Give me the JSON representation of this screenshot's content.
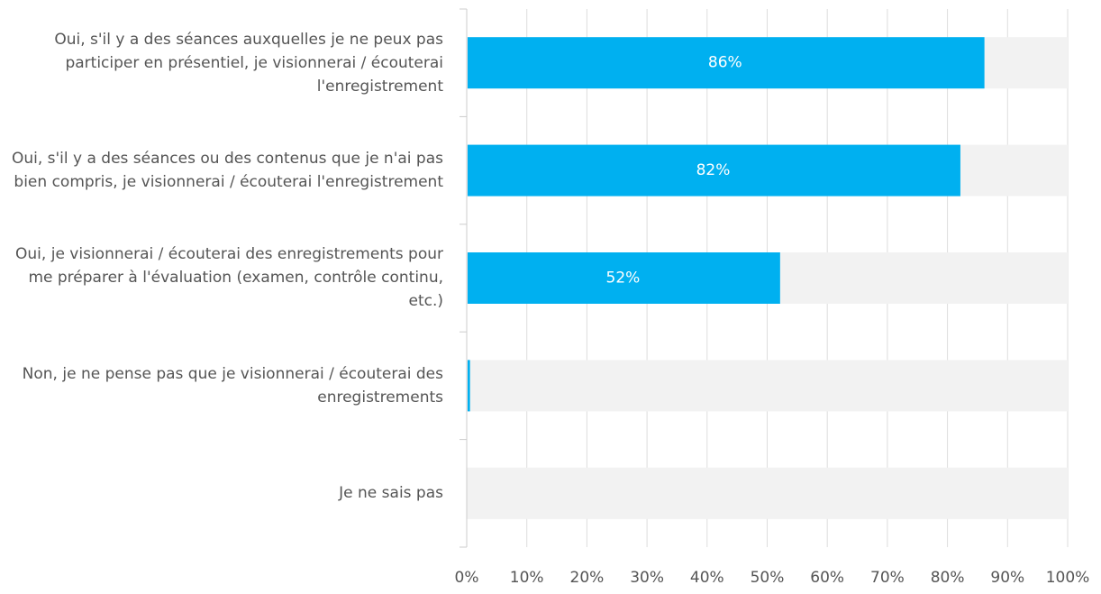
{
  "chart_data": {
    "type": "barh",
    "categories": [
      "Oui, s'il y a des séances auxquelles je ne peux pas participer en présentiel, je visionnerai / écouterai l'enregistrement",
      "Oui, s'il y a des séances ou des contenus que je n'ai pas bien compris, je visionnerai / écouterai l'enregistrement",
      "Oui, je visionnerai / écouterai des enregistrements pour me préparer à l'évaluation (examen, contrôle continu, etc.)",
      "Non, je ne pense pas que je visionnerai / écouterai des enregistrements",
      "Je ne sais pas"
    ],
    "values": [
      86,
      82,
      52,
      0.4,
      0
    ],
    "value_labels": [
      "86%",
      "82%",
      "52%",
      null,
      null
    ],
    "color": "#00b0f0",
    "xlim": [
      0,
      100
    ],
    "xticks": [
      {
        "value": 0,
        "label": "0%"
      },
      {
        "value": 10,
        "label": "10%"
      },
      {
        "value": 20,
        "label": "20%"
      },
      {
        "value": 30,
        "label": "30%"
      },
      {
        "value": 40,
        "label": "40%"
      },
      {
        "value": 50,
        "label": "50%"
      },
      {
        "value": 60,
        "label": "60%"
      },
      {
        "value": 70,
        "label": "70%"
      },
      {
        "value": 80,
        "label": "80%"
      },
      {
        "value": 90,
        "label": "90%"
      },
      {
        "value": 100,
        "label": "100%"
      }
    ],
    "grid": true
  }
}
